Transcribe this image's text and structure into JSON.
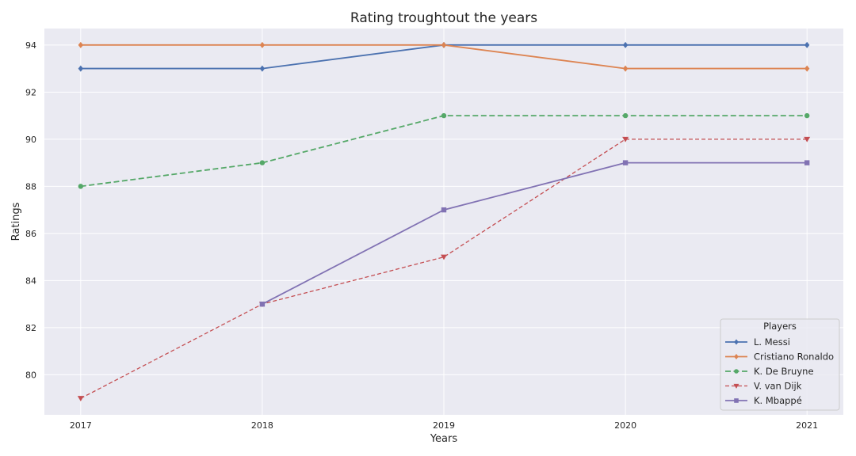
{
  "chart_data": {
    "type": "line",
    "title": "Rating troughtout the years",
    "xlabel": "Years",
    "ylabel": "Ratings",
    "x": [
      2017,
      2018,
      2019,
      2020,
      2021
    ],
    "x_tick_labels": [
      "2017",
      "2018",
      "2019",
      "2020",
      "2021"
    ],
    "ylim": [
      78.3,
      94.7
    ],
    "y_ticks": [
      80,
      82,
      84,
      86,
      88,
      90,
      92,
      94
    ],
    "y_tick_labels": [
      "80",
      "82",
      "84",
      "86",
      "88",
      "90",
      "92",
      "94"
    ],
    "grid": true,
    "legend": {
      "title": "Players",
      "placement": "bottom-right"
    },
    "background_color": "#eaeaf2",
    "series": [
      {
        "name": "L. Messi",
        "x": [
          2017,
          2018,
          2019,
          2020,
          2021
        ],
        "values": [
          93,
          93,
          94,
          94,
          94
        ],
        "color": "#4c72b0",
        "dash": "solid",
        "marker": "diamond"
      },
      {
        "name": "Cristiano Ronaldo",
        "x": [
          2017,
          2018,
          2019,
          2020,
          2021
        ],
        "values": [
          94,
          94,
          94,
          93,
          93
        ],
        "color": "#dd8452",
        "dash": "solid",
        "marker": "diamond"
      },
      {
        "name": "K. De Bruyne",
        "x": [
          2017,
          2018,
          2019,
          2020,
          2021
        ],
        "values": [
          88,
          89,
          91,
          91,
          91
        ],
        "color": "#55a868",
        "dash": "dashed",
        "marker": "circle"
      },
      {
        "name": "V. van Dijk",
        "x": [
          2017,
          2018,
          2019,
          2020,
          2021
        ],
        "values": [
          79,
          83,
          85,
          90,
          90
        ],
        "color": "#c44e52",
        "dash": "dashed-thin",
        "marker": "triangle-down"
      },
      {
        "name": "K. Mbappé",
        "x": [
          2018,
          2019,
          2020,
          2021
        ],
        "values": [
          83,
          87,
          89,
          89
        ],
        "color": "#8172b3",
        "dash": "solid",
        "marker": "square"
      }
    ]
  }
}
